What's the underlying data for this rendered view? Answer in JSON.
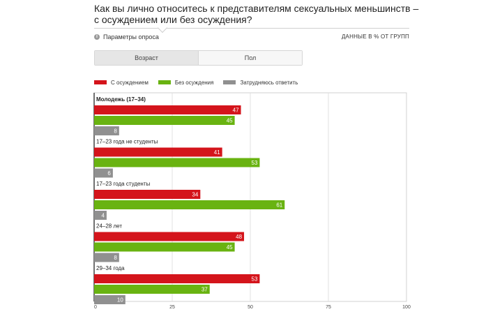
{
  "header": {
    "title": "Как вы лично относитесь к представителям сексуальных меньшинств – с осуждением или без осуждения?",
    "params_label": "Параметры опроса",
    "units_label": "ДАННЫЕ В % ОТ ГРУПП"
  },
  "tabs": [
    {
      "label": "Возраст",
      "active": true
    },
    {
      "label": "Пол",
      "active": false
    }
  ],
  "colors": {
    "with_condemnation": "#d4141b",
    "without_condemnation": "#69b311",
    "undecided": "#909090"
  },
  "chart_data": {
    "type": "bar",
    "orientation": "horizontal",
    "categories": [
      "Молодежь (17–34)",
      "17–23 года не студенты",
      "17–23 года студенты",
      "24–28 лет",
      "29–34 года"
    ],
    "series": [
      {
        "name": "С осуждением",
        "values": [
          47,
          41,
          34,
          48,
          53
        ]
      },
      {
        "name": "Без осуждения",
        "values": [
          45,
          53,
          61,
          45,
          37
        ]
      },
      {
        "name": "Затрудняюсь ответить",
        "values": [
          8,
          6,
          4,
          8,
          10
        ]
      }
    ],
    "xlim": [
      0,
      100
    ],
    "xticks": [
      0,
      25,
      50,
      75,
      100
    ],
    "grid": true,
    "legend": "top-left"
  }
}
